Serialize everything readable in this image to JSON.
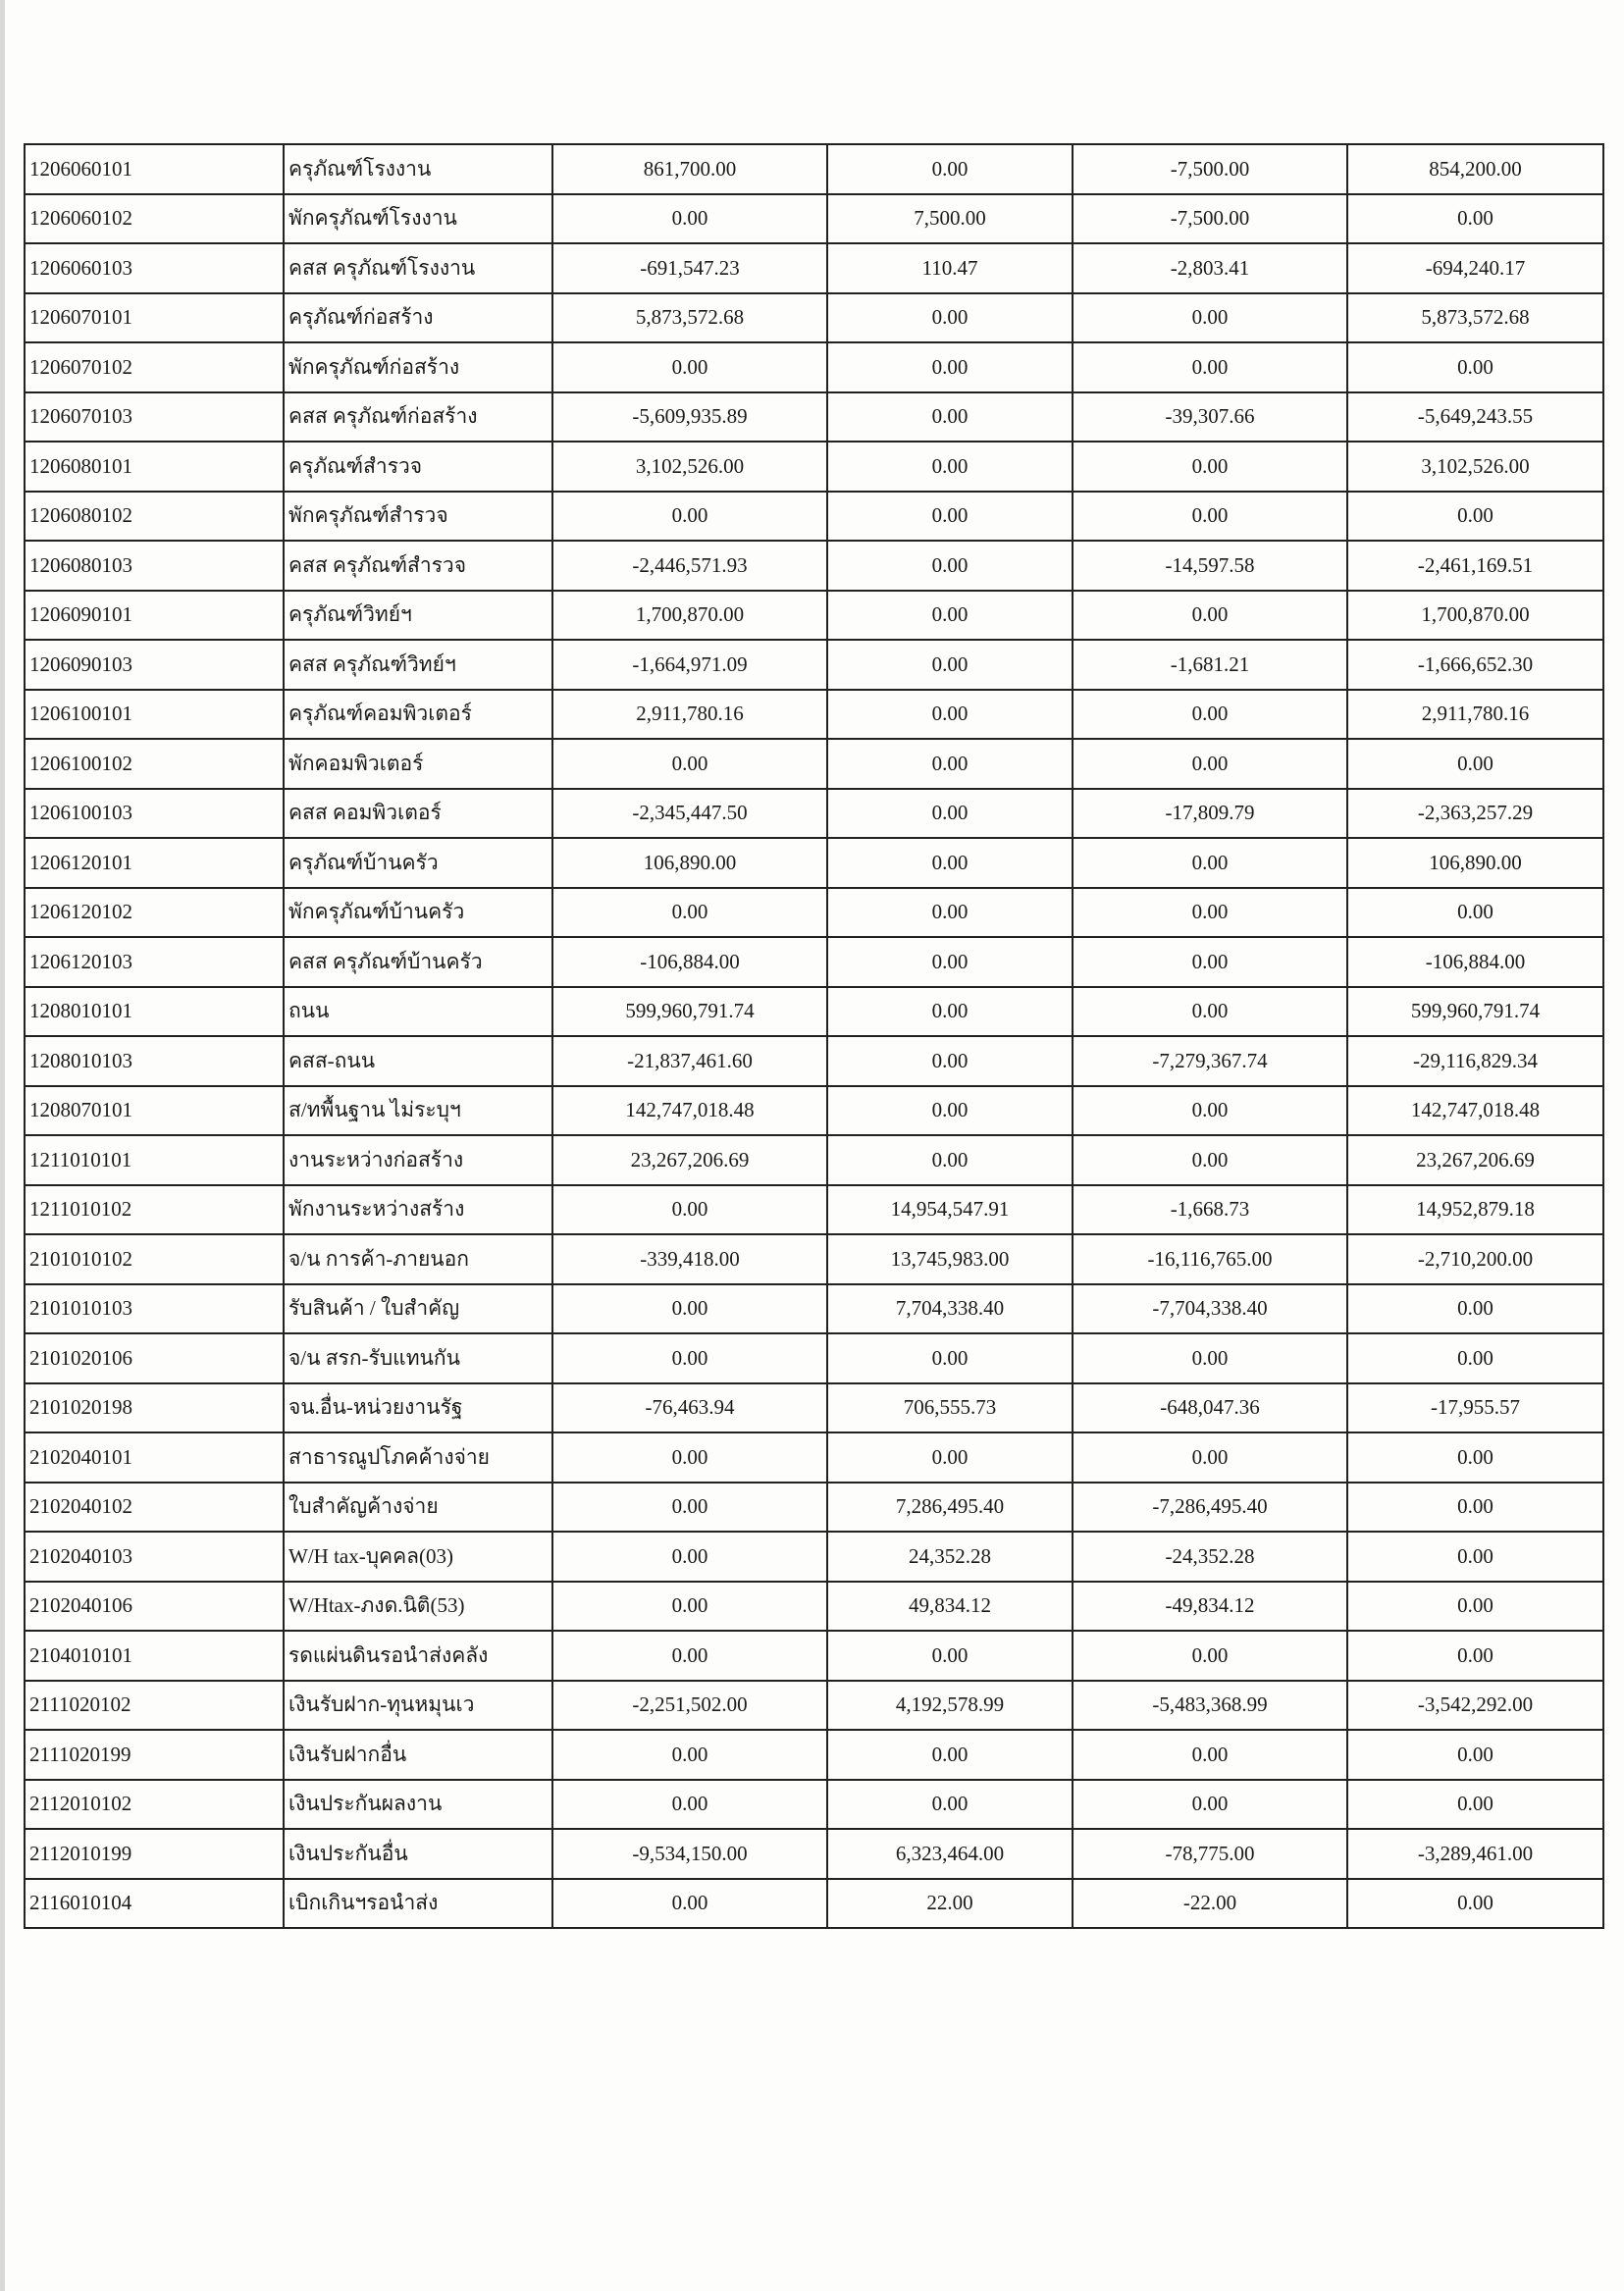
{
  "rows": [
    {
      "code": "1206060101",
      "name": "ครุภัณฑ์โรงงาน",
      "c1": "861,700.00",
      "c2": "0.00",
      "c3": "-7,500.00",
      "c4": "854,200.00"
    },
    {
      "code": "1206060102",
      "name": "พักครุภัณฑ์โรงงาน",
      "c1": "0.00",
      "c2": "7,500.00",
      "c3": "-7,500.00",
      "c4": "0.00"
    },
    {
      "code": "1206060103",
      "name": "คสส ครุภัณฑ์โรงงาน",
      "c1": "-691,547.23",
      "c2": "110.47",
      "c3": "-2,803.41",
      "c4": "-694,240.17"
    },
    {
      "code": "1206070101",
      "name": "ครุภัณฑ์ก่อสร้าง",
      "c1": "5,873,572.68",
      "c2": "0.00",
      "c3": "0.00",
      "c4": "5,873,572.68"
    },
    {
      "code": "1206070102",
      "name": "พักครุภัณฑ์ก่อสร้าง",
      "c1": "0.00",
      "c2": "0.00",
      "c3": "0.00",
      "c4": "0.00"
    },
    {
      "code": "1206070103",
      "name": "คสส ครุภัณฑ์ก่อสร้าง",
      "c1": "-5,609,935.89",
      "c2": "0.00",
      "c3": "-39,307.66",
      "c4": "-5,649,243.55"
    },
    {
      "code": "1206080101",
      "name": "ครุภัณฑ์สำรวจ",
      "c1": "3,102,526.00",
      "c2": "0.00",
      "c3": "0.00",
      "c4": "3,102,526.00"
    },
    {
      "code": "1206080102",
      "name": "พักครุภัณฑ์สำรวจ",
      "c1": "0.00",
      "c2": "0.00",
      "c3": "0.00",
      "c4": "0.00"
    },
    {
      "code": "1206080103",
      "name": "คสส ครุภัณฑ์สำรวจ",
      "c1": "-2,446,571.93",
      "c2": "0.00",
      "c3": "-14,597.58",
      "c4": "-2,461,169.51"
    },
    {
      "code": "1206090101",
      "name": "ครุภัณฑ์วิทย์ฯ",
      "c1": "1,700,870.00",
      "c2": "0.00",
      "c3": "0.00",
      "c4": "1,700,870.00"
    },
    {
      "code": "1206090103",
      "name": "คสส ครุภัณฑ์วิทย์ฯ",
      "c1": "-1,664,971.09",
      "c2": "0.00",
      "c3": "-1,681.21",
      "c4": "-1,666,652.30"
    },
    {
      "code": "1206100101",
      "name": "ครุภัณฑ์คอมพิวเตอร์",
      "c1": "2,911,780.16",
      "c2": "0.00",
      "c3": "0.00",
      "c4": "2,911,780.16"
    },
    {
      "code": "1206100102",
      "name": "พักคอมพิวเตอร์",
      "c1": "0.00",
      "c2": "0.00",
      "c3": "0.00",
      "c4": "0.00"
    },
    {
      "code": "1206100103",
      "name": "คสส คอมพิวเตอร์",
      "c1": "-2,345,447.50",
      "c2": "0.00",
      "c3": "-17,809.79",
      "c4": "-2,363,257.29"
    },
    {
      "code": "1206120101",
      "name": "ครุภัณฑ์บ้านครัว",
      "c1": "106,890.00",
      "c2": "0.00",
      "c3": "0.00",
      "c4": "106,890.00"
    },
    {
      "code": "1206120102",
      "name": "พักครุภัณฑ์บ้านครัว",
      "c1": "0.00",
      "c2": "0.00",
      "c3": "0.00",
      "c4": "0.00"
    },
    {
      "code": "1206120103",
      "name": "คสส ครุภัณฑ์บ้านครัว",
      "c1": "-106,884.00",
      "c2": "0.00",
      "c3": "0.00",
      "c4": "-106,884.00"
    },
    {
      "code": "1208010101",
      "name": "ถนน",
      "c1": "599,960,791.74",
      "c2": "0.00",
      "c3": "0.00",
      "c4": "599,960,791.74"
    },
    {
      "code": "1208010103",
      "name": "คสส-ถนน",
      "c1": "-21,837,461.60",
      "c2": "0.00",
      "c3": "-7,279,367.74",
      "c4": "-29,116,829.34"
    },
    {
      "code": "1208070101",
      "name": "ส/ทพื้นฐาน ไม่ระบุฯ",
      "c1": "142,747,018.48",
      "c2": "0.00",
      "c3": "0.00",
      "c4": "142,747,018.48"
    },
    {
      "code": "1211010101",
      "name": "งานระหว่างก่อสร้าง",
      "c1": "23,267,206.69",
      "c2": "0.00",
      "c3": "0.00",
      "c4": "23,267,206.69"
    },
    {
      "code": "1211010102",
      "name": "พักงานระหว่างสร้าง",
      "c1": "0.00",
      "c2": "14,954,547.91",
      "c3": "-1,668.73",
      "c4": "14,952,879.18"
    },
    {
      "code": "2101010102",
      "name": "จ/น การค้า-ภายนอก",
      "c1": "-339,418.00",
      "c2": "13,745,983.00",
      "c3": "-16,116,765.00",
      "c4": "-2,710,200.00"
    },
    {
      "code": "2101010103",
      "name": "รับสินค้า / ใบสำคัญ",
      "c1": "0.00",
      "c2": "7,704,338.40",
      "c3": "-7,704,338.40",
      "c4": "0.00"
    },
    {
      "code": "2101020106",
      "name": "จ/น สรก-รับแทนกัน",
      "c1": "0.00",
      "c2": "0.00",
      "c3": "0.00",
      "c4": "0.00"
    },
    {
      "code": "2101020198",
      "name": "จน.อื่น-หน่วยงานรัฐ",
      "c1": "-76,463.94",
      "c2": "706,555.73",
      "c3": "-648,047.36",
      "c4": "-17,955.57"
    },
    {
      "code": "2102040101",
      "name": "สาธารณูปโภคค้างจ่าย",
      "c1": "0.00",
      "c2": "0.00",
      "c3": "0.00",
      "c4": "0.00"
    },
    {
      "code": "2102040102",
      "name": "ใบสำคัญค้างจ่าย",
      "c1": "0.00",
      "c2": "7,286,495.40",
      "c3": "-7,286,495.40",
      "c4": "0.00"
    },
    {
      "code": "2102040103",
      "name": "W/H tax-บุคคล(03)",
      "c1": "0.00",
      "c2": "24,352.28",
      "c3": "-24,352.28",
      "c4": "0.00"
    },
    {
      "code": "2102040106",
      "name": "W/Htax-ภงด.นิติ(53)",
      "c1": "0.00",
      "c2": "49,834.12",
      "c3": "-49,834.12",
      "c4": "0.00"
    },
    {
      "code": "2104010101",
      "name": "รดแผ่นดินรอนำส่งคลัง",
      "c1": "0.00",
      "c2": "0.00",
      "c3": "0.00",
      "c4": "0.00"
    },
    {
      "code": "2111020102",
      "name": "เงินรับฝาก-ทุนหมุนเว",
      "c1": "-2,251,502.00",
      "c2": "4,192,578.99",
      "c3": "-5,483,368.99",
      "c4": "-3,542,292.00"
    },
    {
      "code": "2111020199",
      "name": "เงินรับฝากอื่น",
      "c1": "0.00",
      "c2": "0.00",
      "c3": "0.00",
      "c4": "0.00"
    },
    {
      "code": "2112010102",
      "name": "เงินประกันผลงาน",
      "c1": "0.00",
      "c2": "0.00",
      "c3": "0.00",
      "c4": "0.00"
    },
    {
      "code": "2112010199",
      "name": "เงินประกันอื่น",
      "c1": "-9,534,150.00",
      "c2": "6,323,464.00",
      "c3": "-78,775.00",
      "c4": "-3,289,461.00"
    },
    {
      "code": "2116010104",
      "name": "เบิกเกินฯรอนำส่ง",
      "c1": "0.00",
      "c2": "22.00",
      "c3": "-22.00",
      "c4": "0.00"
    }
  ]
}
